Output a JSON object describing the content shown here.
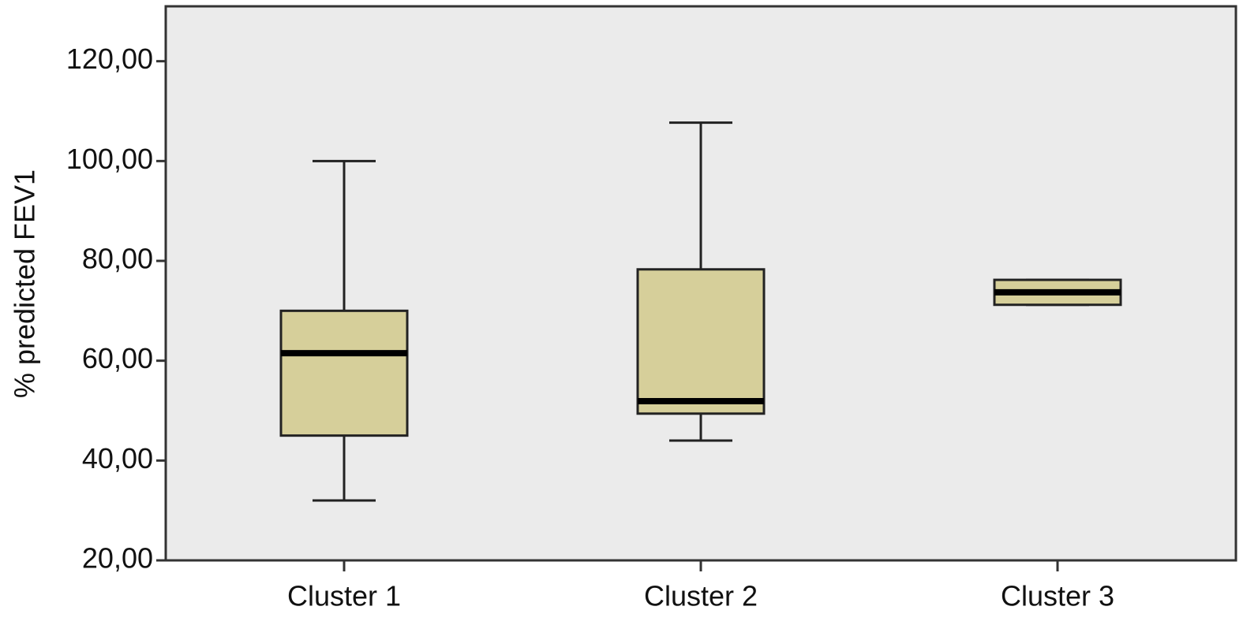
{
  "chart_data": {
    "type": "box",
    "y_label": "% predicted FEV1",
    "categories": [
      "Cluster 1",
      "Cluster 2",
      "Cluster 3"
    ],
    "boxes": [
      {
        "min": 32,
        "q1": 45,
        "median": 61.5,
        "q3": 70,
        "max": 100
      },
      {
        "min": 44,
        "q1": 49.4,
        "median": 51.9,
        "q3": 78.3,
        "max": 107.7
      },
      {
        "min": 71.2,
        "q1": 71.2,
        "median": 73.7,
        "q3": 76.2,
        "max": 76.2
      }
    ],
    "color": "#d6cf9a",
    "background": "#ebebeb",
    "ylim": [
      20,
      131
    ],
    "yticks": [
      {
        "value": 20,
        "label": "20,00"
      },
      {
        "value": 40,
        "label": "40,00"
      },
      {
        "value": 60,
        "label": "60,00"
      },
      {
        "value": 80,
        "label": "80,00"
      },
      {
        "value": 100,
        "label": "100,00"
      },
      {
        "value": 120,
        "label": "120,00"
      }
    ]
  }
}
